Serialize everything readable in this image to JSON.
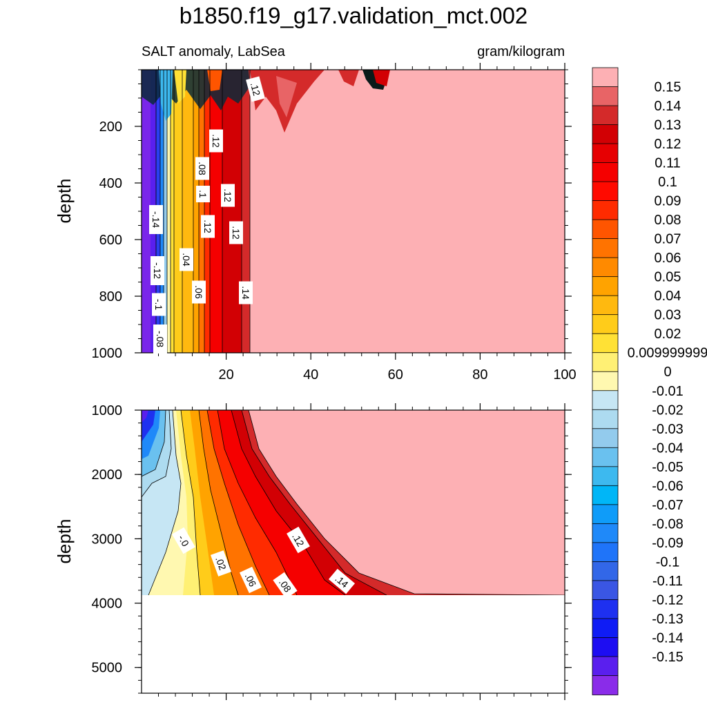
{
  "chart_data": {
    "type": "heatmap",
    "title": "b1850.f19_g17.validation_mct.002",
    "left_subtitle": "SALT anomaly, LabSea",
    "right_subtitle": "gram/kilogram",
    "xticks": [
      "20",
      "40",
      "60",
      "80",
      "100"
    ],
    "xlim": [
      0,
      100
    ],
    "upper_panel": {
      "ylabel": "depth",
      "ylim": [
        0,
        1000
      ],
      "yticks": [
        "200",
        "400",
        "600",
        "800",
        "1000"
      ]
    },
    "lower_panel": {
      "ylabel": "depth",
      "ylim": [
        1000,
        5400
      ],
      "yticks": [
        "1000",
        "2000",
        "3000",
        "4000",
        "5000"
      ]
    },
    "contour_labels_upper": [
      ".12",
      ".12",
      ".08",
      ".1",
      ".12",
      ".12",
      ".12",
      ".14",
      "-.14",
      "-.12",
      "-.1",
      "-.08",
      ".04",
      ".06"
    ],
    "contour_labels_lower": [
      "-.0",
      ".02",
      ".06",
      ".08",
      ".12",
      ".14"
    ],
    "colorbar": {
      "labels": [
        "0.15",
        "0.14",
        "0.13",
        "0.12",
        "0.11",
        "0.1",
        "0.09",
        "0.08",
        "0.07",
        "0.06",
        "0.05",
        "0.04",
        "0.03",
        "0.02",
        "0.009999999",
        "0",
        "-0.01",
        "-0.02",
        "-0.03",
        "-0.04",
        "-0.05",
        "-0.06",
        "-0.07",
        "-0.08",
        "-0.09",
        "-0.1",
        "-0.11",
        "-0.12",
        "-0.13",
        "-0.14",
        "-0.15"
      ],
      "colors": [
        "#fdb0b4",
        "#e86466",
        "#d42a2a",
        "#d20004",
        "#e60002",
        "#f50000",
        "#ff0a00",
        "#ff2b00",
        "#ff5500",
        "#ff7300",
        "#ff8a00",
        "#ffa300",
        "#ffb90f",
        "#ffcc1a",
        "#ffe135",
        "#fff074",
        "#fff8b0",
        "#c6e6f4",
        "#addbf0",
        "#93cbed",
        "#6ac1ef",
        "#3db9ef",
        "#00b6f7",
        "#0f9cf9",
        "#1f89f9",
        "#1f74f9",
        "#3267e8",
        "#3a56e4",
        "#1e30f0",
        "#0f1cf5",
        "#1d0df2",
        "#5a1fee",
        "#8a2ce9"
      ]
    }
  }
}
